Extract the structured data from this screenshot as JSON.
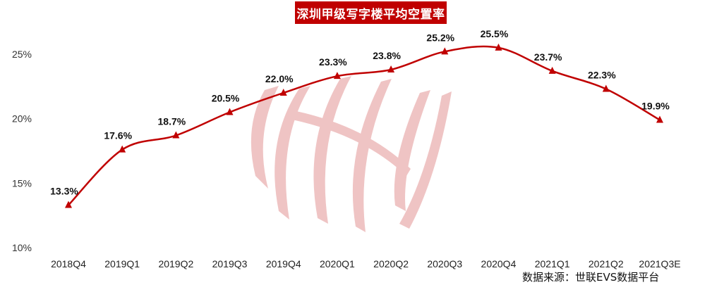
{
  "chart_data": {
    "type": "line",
    "title": "深圳甲级写字楼平均空置率",
    "categories": [
      "2018Q4",
      "2019Q1",
      "2019Q2",
      "2019Q3",
      "2019Q4",
      "2020Q1",
      "2020Q2",
      "2020Q3",
      "2020Q4",
      "2021Q1",
      "2021Q2",
      "2021Q3E"
    ],
    "series": [
      {
        "values": [
          13.3,
          17.6,
          18.7,
          20.5,
          22.0,
          23.3,
          23.8,
          25.2,
          25.5,
          23.7,
          22.3,
          19.9
        ]
      }
    ],
    "data_labels": [
      "13.3%",
      "17.6%",
      "18.7%",
      "20.5%",
      "22.0%",
      "23.3%",
      "23.8%",
      "25.2%",
      "25.5%",
      "23.7%",
      "22.3%",
      "19.9%"
    ],
    "yticks": [
      "10%",
      "15%",
      "20%",
      "25%"
    ],
    "ytick_values": [
      10,
      15,
      20,
      25
    ],
    "ylim": [
      10,
      27.2
    ],
    "grid": false,
    "legend": "none",
    "line_color": "#c00000",
    "source": "数据来源：世联EVS数据平台"
  }
}
